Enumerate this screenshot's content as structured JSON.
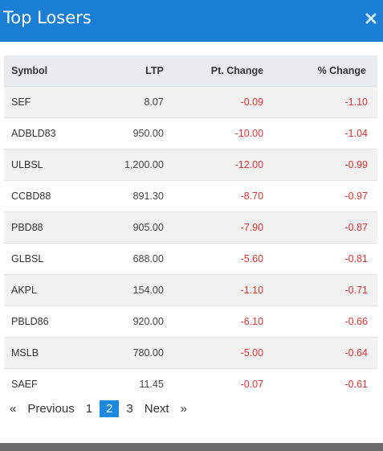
{
  "modal": {
    "title": "Top Losers",
    "close_symbol": "×"
  },
  "table": {
    "headers": {
      "symbol": "Symbol",
      "ltp": "LTP",
      "pt_change": "Pt. Change",
      "pct_change": "% Change"
    },
    "rows": [
      {
        "symbol": "SEF",
        "ltp": "8.07",
        "pt_change": "-0.09",
        "pct_change": "-1.10"
      },
      {
        "symbol": "ADBLD83",
        "ltp": "950.00",
        "pt_change": "-10.00",
        "pct_change": "-1.04"
      },
      {
        "symbol": "ULBSL",
        "ltp": "1,200.00",
        "pt_change": "-12.00",
        "pct_change": "-0.99"
      },
      {
        "symbol": "CCBD88",
        "ltp": "891.30",
        "pt_change": "-8.70",
        "pct_change": "-0.97"
      },
      {
        "symbol": "PBD88",
        "ltp": "905.00",
        "pt_change": "-7.90",
        "pct_change": "-0.87"
      },
      {
        "symbol": "GLBSL",
        "ltp": "688.00",
        "pt_change": "-5.60",
        "pct_change": "-0.81"
      },
      {
        "symbol": "AKPL",
        "ltp": "154.00",
        "pt_change": "-1.10",
        "pct_change": "-0.71"
      },
      {
        "symbol": "PBLD86",
        "ltp": "920.00",
        "pt_change": "-6.10",
        "pct_change": "-0.66"
      },
      {
        "symbol": "MSLB",
        "ltp": "780.00",
        "pt_change": "-5.00",
        "pct_change": "-0.64"
      },
      {
        "symbol": "SAEF",
        "ltp": "11.45",
        "pt_change": "-0.07",
        "pct_change": "-0.61"
      }
    ]
  },
  "pagination": {
    "first_symbol": "«",
    "previous_label": "Previous",
    "pages": [
      "1",
      "2",
      "3"
    ],
    "current_page": "2",
    "next_label": "Next",
    "last_symbol": "»"
  },
  "colors": {
    "header_bg": "#1a7fd4",
    "negative": "#e03131",
    "active_page": "#1a89e0"
  }
}
